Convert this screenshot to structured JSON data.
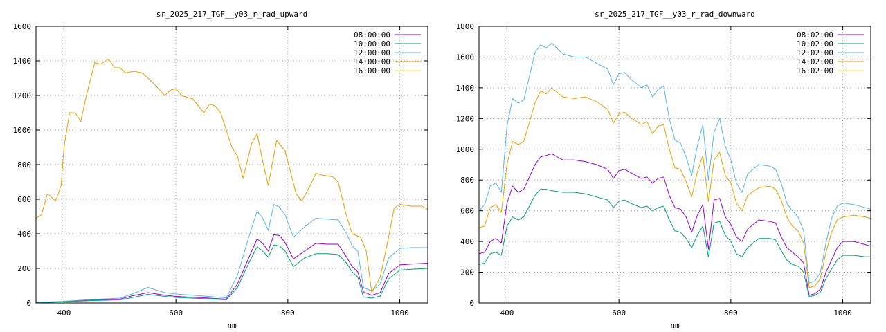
{
  "chart_data": [
    {
      "type": "line",
      "title": "sr_2025_217_TGF__y03_r_rad_upward",
      "xlabel": "nm",
      "ylabel": "",
      "xlim": [
        350,
        1050
      ],
      "ylim": [
        0,
        1600
      ],
      "xticks": [
        400,
        600,
        800,
        1000
      ],
      "yticks": [
        0,
        200,
        400,
        600,
        800,
        1000,
        1200,
        1400,
        1600
      ],
      "grid": true,
      "legend_position": "top-right",
      "series": [
        {
          "name": "08:00:00",
          "color": "#9400d3",
          "x": [
            350,
            400,
            450,
            500,
            520,
            550,
            580,
            600,
            650,
            690,
            710,
            730,
            745,
            755,
            765,
            775,
            785,
            795,
            810,
            830,
            850,
            870,
            890,
            905,
            915,
            925,
            935,
            950,
            965,
            980,
            1000,
            1020,
            1050
          ],
          "y": [
            2,
            8,
            18,
            22,
            40,
            60,
            45,
            38,
            30,
            22,
            110,
            260,
            370,
            345,
            300,
            395,
            390,
            350,
            255,
            300,
            345,
            340,
            340,
            265,
            210,
            180,
            65,
            45,
            60,
            170,
            220,
            225,
            230
          ]
        },
        {
          "name": "10:00:00",
          "color": "#009e73",
          "x": [
            350,
            400,
            450,
            500,
            520,
            550,
            580,
            600,
            650,
            690,
            710,
            730,
            745,
            755,
            765,
            775,
            785,
            795,
            810,
            830,
            850,
            870,
            890,
            905,
            915,
            925,
            935,
            950,
            965,
            980,
            1000,
            1020,
            1050
          ],
          "y": [
            2,
            7,
            14,
            18,
            30,
            50,
            38,
            32,
            25,
            18,
            90,
            230,
            325,
            300,
            265,
            335,
            330,
            300,
            210,
            260,
            285,
            285,
            280,
            230,
            180,
            150,
            35,
            28,
            40,
            140,
            190,
            195,
            200
          ]
        },
        {
          "name": "12:00:00",
          "color": "#56b4e9",
          "x": [
            350,
            400,
            450,
            500,
            520,
            550,
            580,
            600,
            650,
            690,
            710,
            730,
            745,
            755,
            765,
            775,
            785,
            795,
            810,
            830,
            850,
            870,
            890,
            905,
            915,
            925,
            935,
            950,
            965,
            980,
            1000,
            1020,
            1050
          ],
          "y": [
            3,
            10,
            20,
            28,
            50,
            90,
            60,
            52,
            40,
            30,
            160,
            380,
            530,
            490,
            420,
            570,
            555,
            510,
            380,
            440,
            490,
            485,
            480,
            400,
            330,
            300,
            90,
            70,
            110,
            260,
            315,
            320,
            320
          ]
        },
        {
          "name": "14:00:00",
          "color": "#e69f00",
          "x": [
            350,
            360,
            370,
            375,
            385,
            395,
            400,
            410,
            420,
            430,
            440,
            455,
            465,
            480,
            490,
            500,
            510,
            525,
            540,
            560,
            580,
            590,
            600,
            610,
            630,
            650,
            660,
            670,
            680,
            690,
            700,
            710,
            720,
            735,
            745,
            755,
            765,
            780,
            795,
            815,
            825,
            840,
            850,
            860,
            880,
            890,
            905,
            915,
            930,
            940,
            950,
            965,
            980,
            990,
            1000,
            1020,
            1040,
            1050
          ],
          "y": [
            490,
            510,
            630,
            620,
            590,
            680,
            900,
            1100,
            1100,
            1050,
            1200,
            1390,
            1380,
            1410,
            1360,
            1360,
            1330,
            1340,
            1330,
            1270,
            1200,
            1230,
            1240,
            1200,
            1180,
            1100,
            1150,
            1140,
            1100,
            1000,
            900,
            850,
            720,
            920,
            980,
            820,
            680,
            940,
            880,
            630,
            590,
            680,
            750,
            740,
            730,
            700,
            500,
            400,
            380,
            300,
            60,
            150,
            380,
            550,
            570,
            560,
            560,
            540
          ]
        },
        {
          "name": "16:00:00",
          "color": "#f0e442",
          "x": [
            350,
            1050
          ],
          "y": [
            0,
            0
          ]
        }
      ]
    },
    {
      "type": "line",
      "title": "sr_2025_217_TGF__y03_r_rad_downward",
      "xlabel": "nm",
      "ylabel": "",
      "xlim": [
        350,
        1050
      ],
      "ylim": [
        0,
        1800
      ],
      "xticks": [
        400,
        600,
        800,
        1000
      ],
      "yticks": [
        0,
        200,
        400,
        600,
        800,
        1000,
        1200,
        1400,
        1600,
        1800
      ],
      "grid": true,
      "legend_position": "top-right",
      "series": [
        {
          "name": "08:02:00",
          "color": "#9400d3",
          "x": [
            350,
            360,
            370,
            380,
            390,
            400,
            410,
            420,
            430,
            450,
            460,
            470,
            480,
            500,
            520,
            540,
            560,
            580,
            590,
            600,
            610,
            620,
            640,
            650,
            660,
            670,
            680,
            690,
            700,
            710,
            720,
            730,
            740,
            750,
            760,
            770,
            780,
            790,
            800,
            810,
            820,
            830,
            850,
            870,
            880,
            890,
            900,
            910,
            920,
            930,
            940,
            950,
            960,
            970,
            980,
            990,
            1000,
            1020,
            1040,
            1050
          ],
          "y": [
            320,
            330,
            400,
            420,
            390,
            650,
            760,
            720,
            740,
            900,
            950,
            960,
            970,
            930,
            930,
            920,
            900,
            870,
            810,
            860,
            870,
            850,
            810,
            820,
            780,
            810,
            820,
            700,
            620,
            610,
            560,
            460,
            570,
            640,
            350,
            670,
            680,
            560,
            510,
            430,
            400,
            480,
            540,
            530,
            520,
            430,
            360,
            330,
            300,
            260,
            50,
            60,
            90,
            200,
            280,
            360,
            400,
            400,
            380,
            370
          ]
        },
        {
          "name": "10:02:00",
          "color": "#009e73",
          "x": [
            350,
            360,
            370,
            380,
            390,
            400,
            410,
            420,
            430,
            450,
            460,
            470,
            480,
            500,
            520,
            540,
            560,
            580,
            590,
            600,
            610,
            620,
            640,
            650,
            660,
            670,
            680,
            690,
            700,
            710,
            720,
            730,
            740,
            750,
            760,
            770,
            780,
            790,
            800,
            810,
            820,
            830,
            850,
            870,
            880,
            890,
            900,
            910,
            920,
            930,
            940,
            950,
            960,
            970,
            980,
            990,
            1000,
            1020,
            1040,
            1050
          ],
          "y": [
            250,
            260,
            320,
            330,
            310,
            500,
            560,
            540,
            560,
            700,
            740,
            740,
            730,
            720,
            720,
            710,
            690,
            670,
            620,
            660,
            670,
            650,
            620,
            630,
            600,
            620,
            630,
            540,
            470,
            460,
            420,
            360,
            440,
            500,
            300,
            520,
            530,
            440,
            400,
            320,
            300,
            360,
            420,
            420,
            410,
            340,
            280,
            250,
            240,
            200,
            40,
            50,
            70,
            160,
            220,
            280,
            310,
            310,
            300,
            300
          ]
        },
        {
          "name": "12:02:00",
          "color": "#56b4e9",
          "x": [
            350,
            360,
            370,
            380,
            390,
            400,
            410,
            420,
            430,
            450,
            460,
            470,
            480,
            500,
            520,
            540,
            560,
            580,
            590,
            600,
            610,
            620,
            640,
            650,
            660,
            670,
            680,
            690,
            700,
            710,
            720,
            730,
            740,
            750,
            760,
            770,
            780,
            790,
            800,
            810,
            820,
            830,
            850,
            870,
            880,
            890,
            900,
            910,
            920,
            930,
            940,
            950,
            960,
            970,
            980,
            990,
            1000,
            1020,
            1040,
            1050
          ],
          "y": [
            600,
            640,
            760,
            780,
            720,
            1150,
            1330,
            1300,
            1320,
            1630,
            1680,
            1660,
            1690,
            1620,
            1600,
            1600,
            1560,
            1520,
            1420,
            1490,
            1500,
            1460,
            1400,
            1420,
            1340,
            1390,
            1410,
            1200,
            1060,
            1040,
            950,
            830,
            1020,
            1160,
            800,
            1110,
            1200,
            1020,
            930,
            780,
            720,
            840,
            900,
            890,
            870,
            780,
            650,
            600,
            560,
            470,
            130,
            140,
            200,
            390,
            550,
            630,
            650,
            640,
            620,
            610
          ]
        },
        {
          "name": "14:02:00",
          "color": "#e69f00",
          "x": [
            350,
            360,
            370,
            380,
            390,
            400,
            410,
            420,
            430,
            450,
            460,
            470,
            480,
            500,
            520,
            540,
            560,
            580,
            590,
            600,
            610,
            620,
            640,
            650,
            660,
            670,
            680,
            690,
            700,
            710,
            720,
            730,
            740,
            750,
            760,
            770,
            780,
            790,
            800,
            810,
            820,
            830,
            850,
            870,
            880,
            890,
            900,
            910,
            920,
            930,
            940,
            950,
            960,
            970,
            980,
            990,
            1000,
            1020,
            1040,
            1050
          ],
          "y": [
            490,
            500,
            620,
            640,
            590,
            900,
            1050,
            1030,
            1050,
            1300,
            1380,
            1360,
            1400,
            1340,
            1330,
            1340,
            1310,
            1260,
            1170,
            1230,
            1240,
            1210,
            1160,
            1180,
            1100,
            1150,
            1160,
            1000,
            880,
            870,
            790,
            690,
            850,
            960,
            660,
            930,
            980,
            830,
            780,
            650,
            600,
            700,
            750,
            760,
            740,
            670,
            560,
            500,
            470,
            390,
            100,
            110,
            160,
            330,
            460,
            540,
            560,
            570,
            560,
            550
          ]
        },
        {
          "name": "16:02:00",
          "color": "#f0e442",
          "x": [
            350,
            1050
          ],
          "y": [
            0,
            0
          ]
        }
      ]
    }
  ]
}
